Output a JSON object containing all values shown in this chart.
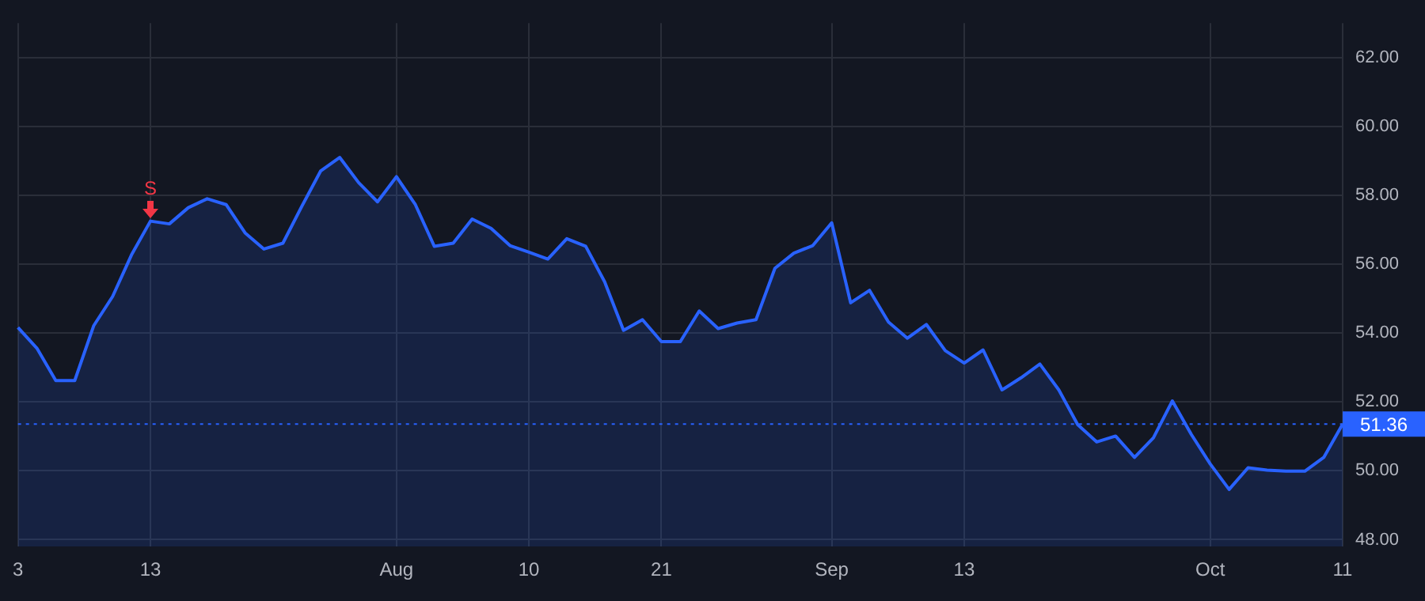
{
  "chart_data": {
    "type": "area",
    "categories": [
      "3",
      null,
      null,
      null,
      null,
      null,
      null,
      "13",
      null,
      null,
      null,
      null,
      null,
      null,
      null,
      null,
      null,
      null,
      null,
      null,
      "Aug",
      null,
      null,
      null,
      null,
      null,
      null,
      "10",
      null,
      null,
      null,
      null,
      null,
      null,
      "21",
      null,
      null,
      null,
      null,
      null,
      null,
      null,
      null,
      "Sep",
      null,
      null,
      null,
      null,
      null,
      null,
      "13",
      null,
      null,
      null,
      null,
      null,
      null,
      null,
      null,
      null,
      null,
      null,
      null,
      "Oct",
      null,
      null,
      null,
      null,
      null,
      null,
      "11"
    ],
    "series": [
      {
        "color": "#2962ff",
        "values": [
          54.16,
          53.56,
          52.62,
          52.62,
          54.21,
          55.06,
          56.27,
          57.25,
          57.17,
          57.64,
          57.9,
          57.73,
          56.91,
          56.44,
          56.61,
          57.68,
          58.71,
          59.1,
          58.37,
          57.81,
          58.54,
          57.73,
          56.52,
          56.61,
          57.31,
          57.04,
          56.54,
          56.35,
          56.15,
          56.74,
          56.52,
          55.49,
          54.08,
          54.39,
          53.75,
          53.75,
          54.64,
          54.13,
          54.29,
          54.39,
          55.88,
          56.32,
          56.54,
          57.2,
          54.88,
          55.24,
          54.32,
          53.85,
          54.25,
          53.49,
          53.13,
          53.51,
          52.35,
          52.7,
          53.1,
          52.35,
          51.34,
          50.84,
          51.01,
          50.39,
          50.96,
          52.03,
          51.06,
          50.2,
          49.46,
          50.09,
          50.02,
          49.99,
          49.99,
          50.39,
          51.36
        ]
      }
    ],
    "ylim": [
      47.8,
      63
    ],
    "yticks": [
      {
        "value": 48,
        "label": "48.00"
      },
      {
        "value": 50,
        "label": "50.00"
      },
      {
        "value": 52,
        "label": "52.00"
      },
      {
        "value": 54,
        "label": "54.00"
      },
      {
        "value": 56,
        "label": "56.00"
      },
      {
        "value": 58,
        "label": "58.00"
      },
      {
        "value": 60,
        "label": "60.00"
      },
      {
        "value": 62,
        "label": "62.00"
      }
    ],
    "grid": true,
    "legend": false,
    "marker": "none",
    "line_style": "solid",
    "ref_lines": [
      {
        "axis": "y",
        "value": 51.36,
        "label": "51.36",
        "color": "#2962ff",
        "line_style": "dotted"
      }
    ],
    "annotations": [
      {
        "text": "S",
        "x": "13",
        "y": 57.25
      }
    ]
  }
}
